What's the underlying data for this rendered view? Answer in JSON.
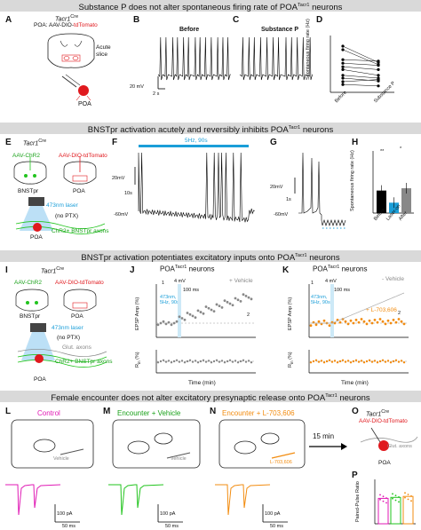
{
  "sections": [
    {
      "title": "Substance P does not alter spontaneous firing rate of POA",
      "sup": "Tacr1",
      "suffix": " neurons"
    },
    {
      "title": "BNSTpr activation acutely and reversibly inhibits POA",
      "sup": "Tacr1",
      "suffix": " neurons"
    },
    {
      "title": "BNSTpr activation potentiates excitatory inputs onto POA",
      "sup": "Tacr1",
      "suffix": " neurons"
    },
    {
      "title": "Female encounter does not alter excitatory presynaptic release onto POA",
      "sup": "Tacr1",
      "suffix": " neurons"
    }
  ],
  "panelA": {
    "letter": "A",
    "mouse": "Tacr1",
    "mouse_sup": "Cre",
    "virus": "POA: AAV-DIO-tdTomato",
    "slice": "Acute\nslice",
    "region": "POA"
  },
  "panelB": {
    "letter": "B",
    "title": "Before",
    "scale_v": "20 mV",
    "scale_t": "2 s"
  },
  "panelC": {
    "letter": "C",
    "title": "Substance P"
  },
  "panelD": {
    "letter": "D",
    "ylabel": "Spontaneous firing rate (Hz)",
    "xticks": [
      "Before",
      "Substance P"
    ],
    "yticks": [
      "0",
      "2",
      "4",
      "6",
      "8"
    ]
  },
  "panelE": {
    "letter": "E",
    "mouse": "Tacr1",
    "mouse_sup": "Cre",
    "virus1": "AAV-ChR2",
    "virus2": "AAV-DIO-tdTomato",
    "region1": "BNSTpr",
    "region2": "POA",
    "laser": "473nm laser",
    "ptx": "(no PTX)",
    "axons": "ChR2+ BNSTpr axons",
    "poa": "POA"
  },
  "panelF": {
    "letter": "F",
    "stim": "5Hz, 90s",
    "scale_v": "20mV",
    "scale_t": "10s",
    "baseline": "-60mV"
  },
  "panelG": {
    "letter": "G",
    "scale_v": "20mV",
    "scale_t": "1s",
    "baseline": "-60mV"
  },
  "panelH": {
    "letter": "H",
    "ylabel": "Spontaneous firing rate (Hz)",
    "xticks": [
      "Before",
      "Laser-on",
      "After"
    ],
    "sig1": "**",
    "sig2": "*",
    "yticks": [
      "0",
      "2",
      "4",
      "6",
      "8",
      "10"
    ]
  },
  "panelI": {
    "letter": "I",
    "mouse": "Tacr1",
    "mouse_sup": "Cre",
    "virus1": "AAV-ChR2",
    "virus2": "AAV-DIO-tdTomato",
    "region1": "BNSTpr",
    "region2": "POA",
    "laser": "473nm laser",
    "ptx": "(no PTX)",
    "glut": "Glut. axons",
    "axons": "ChR2+ BNSTpr axons",
    "poa": "POA"
  },
  "panelJ": {
    "letter": "J",
    "title": "POA",
    "title_sup": "Tacr1",
    "title_suffix": " neurons",
    "legend": "+ Vehicle",
    "stim": "473nm,\n5Hz, 90s",
    "ylabel1": "EPSP Amp (%)",
    "ylabel2": "R",
    "ylabel2_sub": "in",
    "ylabel2_suffix": " (%)",
    "xlabel": "Time (min)",
    "inset_v": "4 mV",
    "inset_t": "100 ms",
    "mark1": "1",
    "mark2": "2",
    "xticks": [
      "0",
      "5",
      "10",
      "15",
      "20",
      "25",
      "30",
      "35"
    ],
    "yticks1": [
      "50",
      "100",
      "150",
      "200"
    ],
    "yticks2": [
      "50",
      "100",
      "150"
    ]
  },
  "panelK": {
    "letter": "K",
    "title": "POA",
    "title_sup": "Tacr1",
    "title_suffix": " neurons",
    "legend1": "Vehicle",
    "legend2": "+ L-703,606",
    "stim": "473nm,\n5Hz, 90s",
    "ylabel1": "EPSP Amp (%)",
    "ylabel2": "R",
    "ylabel2_sub": "in",
    "ylabel2_suffix": " (%)",
    "xlabel": "Time (min)",
    "inset_v": "4 mV",
    "inset_t": "100 ms",
    "mark1": "1",
    "mark2": "2",
    "xticks": [
      "0",
      "5",
      "10",
      "15",
      "20",
      "25",
      "30",
      "35"
    ],
    "yticks1": [
      "50",
      "100",
      "150",
      "200"
    ],
    "yticks2": [
      "50",
      "100",
      "150"
    ]
  },
  "panelL": {
    "letter": "L",
    "title": "Control",
    "vehicle": "Vehicle",
    "scale_i": "100 pA",
    "scale_t": "50 ms",
    "color": "#e01ab5"
  },
  "panelM": {
    "letter": "M",
    "title": "Encounter + Vehicle",
    "vehicle": "Vehicle",
    "scale_i": "100 pA",
    "scale_t": "50 ms",
    "color": "#22c41e"
  },
  "panelN": {
    "letter": "N",
    "title": "Encounter + L-703,606",
    "drug": "L-703,606",
    "scale_i": "100 pA",
    "scale_t": "50 ms",
    "color": "#f28c10"
  },
  "arrow15": "15 min",
  "panelO": {
    "letter": "O",
    "mouse": "Tacr1",
    "mouse_sup": "Cre",
    "virus": "AAV-DIO-tdTomato",
    "axons": "Glut. axons",
    "region": "POA"
  },
  "panelP": {
    "letter": "P",
    "ylabel": "Paired-Pulse Ratio",
    "yticks": [
      "0.0",
      "0.5",
      "1.0",
      "1.5",
      "2.0"
    ]
  }
}
